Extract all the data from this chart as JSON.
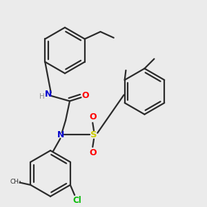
{
  "background_color": "#ebebeb",
  "bond_color": "#2a2a2a",
  "atom_colors": {
    "N": "#0000cc",
    "O": "#ff0000",
    "S": "#cccc00",
    "Cl": "#00bb00",
    "H": "#888888",
    "C": "#2a2a2a"
  },
  "figsize": [
    3.0,
    3.0
  ],
  "dpi": 100
}
